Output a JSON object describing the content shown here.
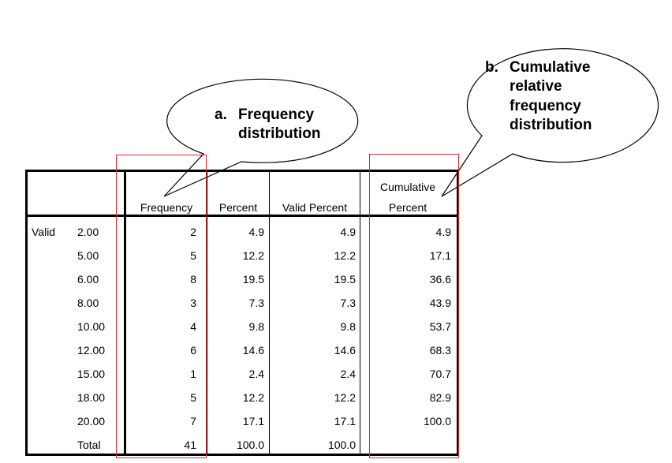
{
  "callouts": {
    "a": {
      "letter": "a.",
      "line1": "Frequency",
      "line2": "distribution"
    },
    "b": {
      "letter": "b.",
      "line1": "Cumulative",
      "line2": "relative",
      "line3": "frequency",
      "line4": "distribution"
    }
  },
  "table": {
    "headers": {
      "frequency": "Frequency",
      "percent": "Percent",
      "valid_percent": "Valid Percent",
      "cumulative_1": "Cumulative",
      "cumulative_2": "Percent"
    },
    "row_group_label": "Valid",
    "rows": [
      {
        "value": "2.00",
        "frequency": "2",
        "percent": "4.9",
        "valid_percent": "4.9",
        "cumulative": "4.9"
      },
      {
        "value": "5.00",
        "frequency": "5",
        "percent": "12.2",
        "valid_percent": "12.2",
        "cumulative": "17.1"
      },
      {
        "value": "6.00",
        "frequency": "8",
        "percent": "19.5",
        "valid_percent": "19.5",
        "cumulative": "36.6"
      },
      {
        "value": "8.00",
        "frequency": "3",
        "percent": "7.3",
        "valid_percent": "7.3",
        "cumulative": "43.9"
      },
      {
        "value": "10.00",
        "frequency": "4",
        "percent": "9.8",
        "valid_percent": "9.8",
        "cumulative": "53.7"
      },
      {
        "value": "12.00",
        "frequency": "6",
        "percent": "14.6",
        "valid_percent": "14.6",
        "cumulative": "68.3"
      },
      {
        "value": "15.00",
        "frequency": "1",
        "percent": "2.4",
        "valid_percent": "2.4",
        "cumulative": "70.7"
      },
      {
        "value": "18.00",
        "frequency": "5",
        "percent": "12.2",
        "valid_percent": "12.2",
        "cumulative": "82.9"
      },
      {
        "value": "20.00",
        "frequency": "7",
        "percent": "17.1",
        "valid_percent": "17.1",
        "cumulative": "100.0"
      },
      {
        "value": "Total",
        "frequency": "41",
        "percent": "100.0",
        "valid_percent": "100.0",
        "cumulative": ""
      }
    ]
  },
  "colors": {
    "highlight": "#d9282f",
    "border": "#000000"
  }
}
